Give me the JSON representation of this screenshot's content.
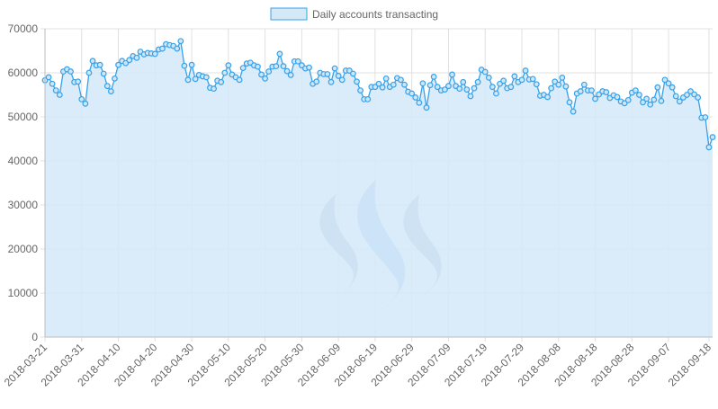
{
  "chart_data": {
    "type": "area",
    "legend": {
      "label": "Daily accounts transacting",
      "position": "top"
    },
    "xlabel": "",
    "ylabel": "",
    "ylim": [
      0,
      70000
    ],
    "y_ticks": [
      0,
      10000,
      20000,
      30000,
      40000,
      50000,
      60000,
      70000
    ],
    "x_tick_labels": [
      "2018-03-21",
      "2018-03-31",
      "2018-04-10",
      "2018-04-20",
      "2018-04-30",
      "2018-05-10",
      "2018-05-20",
      "2018-05-30",
      "2018-06-09",
      "2018-06-19",
      "2018-06-29",
      "2018-07-09",
      "2018-07-19",
      "2018-07-29",
      "2018-08-08",
      "2018-08-18",
      "2018-08-28",
      "2018-09-07",
      "2018-09-18"
    ],
    "grid": true,
    "colors": {
      "line": "#36a2eb",
      "fill": "#d3e9f8",
      "grid": "#e0e0e0",
      "watermark_dark": "#8da0c8",
      "watermark_light": "#9cc3f5"
    },
    "watermark": "steem-logo",
    "x_start": "2018-03-21",
    "x_end": "2018-09-19",
    "values": [
      58300,
      59000,
      57500,
      56000,
      55000,
      60300,
      60800,
      60300,
      57900,
      58000,
      54000,
      53000,
      60000,
      62700,
      61700,
      61800,
      59800,
      57000,
      55800,
      58700,
      61800,
      62700,
      62200,
      62900,
      63800,
      63400,
      64800,
      64200,
      64500,
      64400,
      64300,
      65300,
      65500,
      66500,
      66300,
      66100,
      65500,
      67200,
      61600,
      58400,
      61800,
      58600,
      59500,
      59200,
      59000,
      56600,
      56400,
      58200,
      57900,
      60000,
      61700,
      59600,
      59000,
      58400,
      61100,
      62100,
      62300,
      61700,
      61400,
      59600,
      58700,
      60300,
      61400,
      61500,
      64300,
      61500,
      60400,
      59500,
      62600,
      62600,
      61700,
      61000,
      61200,
      57500,
      58000,
      60000,
      59700,
      59700,
      57900,
      61000,
      59300,
      58400,
      60500,
      60500,
      59800,
      58000,
      56000,
      54000,
      54000,
      56800,
      56800,
      57500,
      56700,
      58700,
      56800,
      57300,
      58800,
      58400,
      57300,
      55700,
      55300,
      54400,
      53200,
      57600,
      52100,
      57200,
      59100,
      56800,
      56000,
      56200,
      57000,
      59600,
      57000,
      56400,
      57900,
      56200,
      54700,
      56500,
      57900,
      60700,
      60200,
      58900,
      56800,
      55300,
      57500,
      58200,
      56500,
      56800,
      59200,
      57900,
      58400,
      60500,
      58500,
      58600,
      57400,
      54800,
      55000,
      54500,
      56500,
      58000,
      57300,
      58900,
      56900,
      53300,
      51200,
      55300,
      55800,
      57300,
      56000,
      56000,
      54100,
      55100,
      55800,
      55600,
      54300,
      54900,
      54500,
      53500,
      53100,
      53800,
      55500,
      56000,
      55000,
      53300,
      54100,
      52800,
      53900,
      56700,
      53600,
      58400,
      57600,
      56700,
      54700,
      53500,
      54400,
      55000,
      55800,
      55100,
      54400,
      49800,
      49900,
      43100,
      45400
    ]
  }
}
